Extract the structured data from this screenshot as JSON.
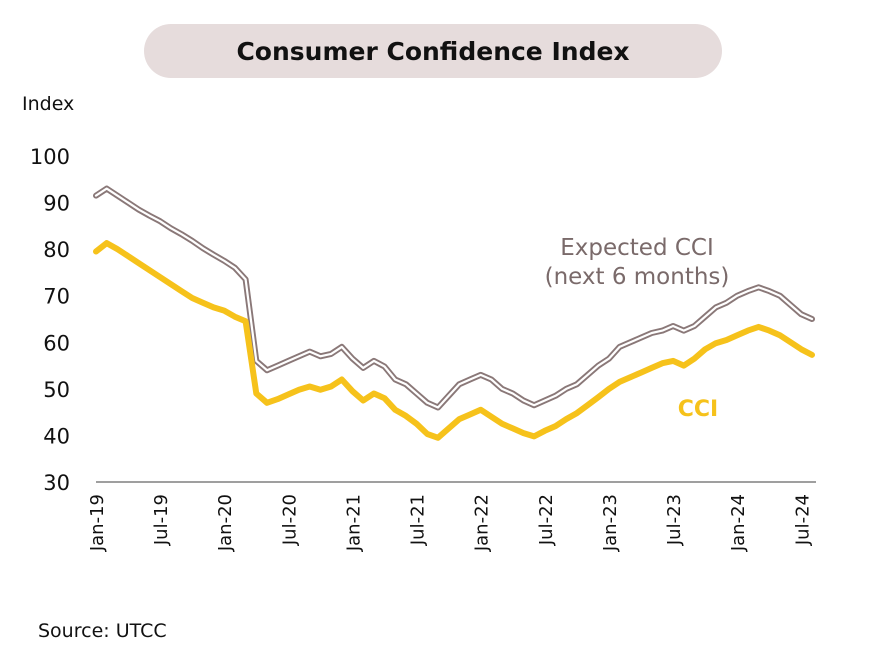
{
  "header": {
    "title": "Consumer Confidence Index"
  },
  "footer": {
    "source": "Source: UTCC"
  },
  "chart_data": {
    "type": "line",
    "ylabel": "Index",
    "ylim": [
      30,
      100
    ],
    "yticks": [
      30,
      40,
      50,
      60,
      70,
      80,
      90,
      100
    ],
    "x_labels": [
      "Jan-19",
      "Jul-19",
      "Jan-20",
      "Jul-20",
      "Jan-21",
      "Jul-21",
      "Jan-22",
      "Jul-22",
      "Jan-23",
      "Jul-23",
      "Jan-24",
      "Jul-24"
    ],
    "x_label_month_index": [
      0,
      6,
      12,
      18,
      24,
      30,
      36,
      42,
      48,
      54,
      60,
      66
    ],
    "x_start": "Jan-19",
    "x_end": "Jul-24",
    "grid": false,
    "legend": "inline annotations",
    "series": [
      {
        "name": "Expected CCI (next 6 months)",
        "color": "#8a7878",
        "style": "double",
        "annotation": [
          "Expected CCI",
          "(next 6 months)"
        ],
        "values": [
          91.5,
          93.0,
          91.5,
          90.0,
          88.5,
          87.2,
          86.0,
          84.5,
          83.2,
          81.8,
          80.2,
          78.8,
          77.5,
          76.0,
          73.5,
          56.0,
          54.0,
          55.0,
          56.0,
          57.0,
          58.0,
          57.0,
          57.5,
          59.0,
          56.5,
          54.5,
          56.0,
          54.8,
          52.0,
          51.0,
          49.0,
          47.0,
          46.0,
          48.5,
          51.0,
          52.0,
          53.0,
          52.0,
          50.0,
          49.0,
          47.5,
          46.5,
          47.5,
          48.5,
          50.0,
          51.0,
          53.0,
          55.0,
          56.5,
          59.0,
          60.0,
          61.0,
          62.0,
          62.5,
          63.5,
          62.5,
          63.5,
          65.5,
          67.5,
          68.5,
          70.0,
          71.0,
          71.8,
          71.0,
          70.0,
          68.0,
          66.0,
          65.0
        ]
      },
      {
        "name": "CCI",
        "color": "#f6c21b",
        "style": "thick",
        "annotation": [
          "CCI"
        ],
        "values": [
          79.5,
          81.3,
          80.0,
          78.5,
          77.0,
          75.5,
          74.0,
          72.5,
          71.0,
          69.5,
          68.5,
          67.5,
          66.8,
          65.5,
          64.5,
          49.0,
          47.0,
          47.8,
          48.8,
          49.8,
          50.5,
          49.8,
          50.5,
          52.0,
          49.5,
          47.5,
          49.0,
          48.0,
          45.5,
          44.2,
          42.5,
          40.3,
          39.5,
          41.5,
          43.5,
          44.5,
          45.5,
          44.0,
          42.5,
          41.5,
          40.5,
          39.8,
          41.0,
          42.0,
          43.5,
          44.8,
          46.5,
          48.2,
          50.0,
          51.5,
          52.5,
          53.5,
          54.5,
          55.5,
          56.0,
          55.0,
          56.5,
          58.5,
          59.8,
          60.5,
          61.5,
          62.5,
          63.3,
          62.5,
          61.5,
          60.0,
          58.5,
          57.3
        ]
      }
    ]
  }
}
